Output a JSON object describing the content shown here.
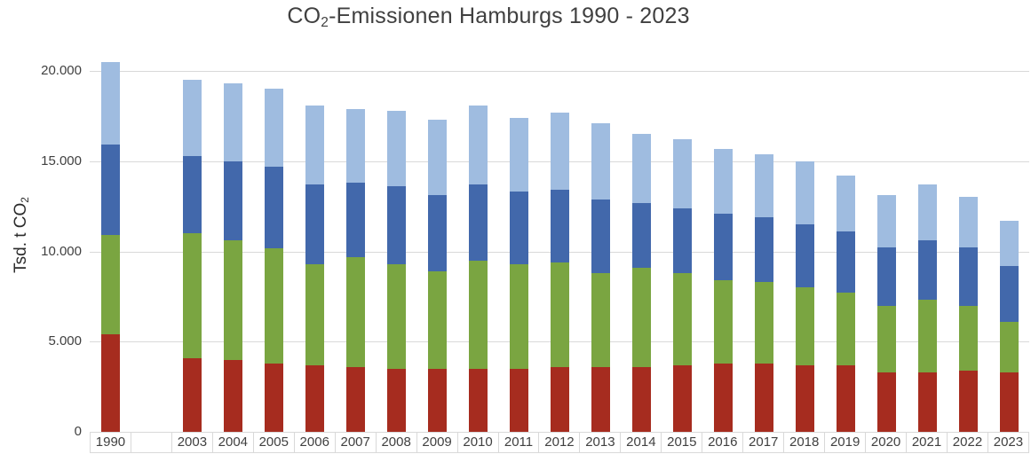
{
  "labels": {
    "title_co": "CO",
    "title_sub": "2",
    "title_rest": "-Emissionen Hamburgs 1990 - 2023",
    "ylabel_prefix": "Tsd. t CO",
    "ylabel_sub": "2"
  },
  "chart_data": {
    "type": "bar",
    "stacked": true,
    "title": "CO2-Emissionen Hamburgs 1990 - 2023",
    "ylabel": "Tsd. t CO2",
    "xlabel": "",
    "ylim": [
      0,
      20000
    ],
    "ytick_interval": 5000,
    "ytick_values": [
      0,
      5000,
      10000,
      15000,
      20000
    ],
    "ytick_labels": [
      "0",
      "5.000",
      "10.000",
      "15.000",
      "20.000"
    ],
    "grid": true,
    "legend": false,
    "grid_color": "#d9d9d9",
    "text_color": "#404040",
    "categories": [
      "1990",
      "",
      "2003",
      "2004",
      "2005",
      "2006",
      "2007",
      "2008",
      "2009",
      "2010",
      "2011",
      "2012",
      "2013",
      "2014",
      "2015",
      "2016",
      "2017",
      "2018",
      "2019",
      "2020",
      "2021",
      "2022",
      "2023"
    ],
    "series": [
      {
        "name": "segment-1-dark-red",
        "color": "#a62c1f",
        "values": [
          5400,
          0,
          4100,
          4000,
          3800,
          3700,
          3600,
          3500,
          3500,
          3500,
          3500,
          3600,
          3600,
          3600,
          3700,
          3800,
          3800,
          3700,
          3700,
          3300,
          3300,
          3400,
          3300
        ]
      },
      {
        "name": "segment-2-green",
        "color": "#7aa541",
        "values": [
          5500,
          0,
          6900,
          6600,
          6400,
          5600,
          6100,
          5800,
          5400,
          6000,
          5800,
          5800,
          5200,
          5500,
          5100,
          4600,
          4500,
          4300,
          4000,
          3700,
          4000,
          3600,
          2800
        ]
      },
      {
        "name": "segment-3-dark-blue",
        "color": "#4268ab",
        "values": [
          5000,
          0,
          4300,
          4400,
          4500,
          4400,
          4100,
          4300,
          4200,
          4200,
          4000,
          4000,
          4100,
          3600,
          3600,
          3700,
          3600,
          3500,
          3400,
          3200,
          3300,
          3200,
          3100
        ]
      },
      {
        "name": "segment-4-light-blue",
        "color": "#9fbce0",
        "values": [
          4600,
          0,
          4200,
          4300,
          4300,
          4400,
          4100,
          4200,
          4200,
          4400,
          4100,
          4300,
          4200,
          3800,
          3800,
          3600,
          3500,
          3500,
          3100,
          2900,
          3100,
          2800,
          2500
        ]
      }
    ],
    "totals": [
      20500,
      0,
      19500,
      19300,
      19000,
      18100,
      17900,
      17800,
      17300,
      18100,
      17400,
      17700,
      17100,
      16500,
      16200,
      15700,
      15400,
      15000,
      14200,
      13100,
      13700,
      13000,
      11700
    ]
  }
}
